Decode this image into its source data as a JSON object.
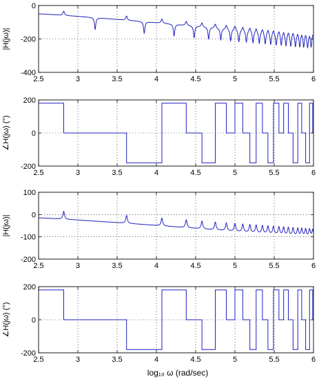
{
  "figure": {
    "xlabel": "log₁₀ ω (rad/sec)"
  },
  "chart_data": [
    {
      "type": "line",
      "ylabel": "|H(jω)|",
      "xlim": [
        2.5,
        6
      ],
      "ylim": [
        -400,
        0
      ],
      "xticks": [
        2.5,
        3,
        3.5,
        4,
        4.5,
        5,
        5.5,
        6
      ],
      "xtick_labels": [
        "2.5",
        "3",
        "3.5",
        "4",
        "4.5",
        "5",
        "5.5",
        "6"
      ],
      "yticks": [
        0,
        -200,
        -400
      ],
      "ytick_labels": [
        "0",
        "-200",
        "-400"
      ],
      "grid": true,
      "series": [
        {
          "kind": "magnitude",
          "baseline_start": -50,
          "baseline_end": -190,
          "peak_height": 25,
          "notches": true,
          "color": "#1f1fbf"
        }
      ]
    },
    {
      "type": "line",
      "ylabel": "∠H(jω) (°)",
      "xlim": [
        2.5,
        6
      ],
      "ylim": [
        -200,
        200
      ],
      "xticks": [
        2.5,
        3,
        3.5,
        4,
        4.5,
        5,
        5.5,
        6
      ],
      "xtick_labels": [
        "2.5",
        "3",
        "3.5",
        "4",
        "4.5",
        "5",
        "5.5",
        "6"
      ],
      "yticks": [
        200,
        0,
        -200
      ],
      "ytick_labels": [
        "200",
        "0",
        "-200"
      ],
      "grid": true,
      "series": [
        {
          "kind": "phase",
          "values": [
            180,
            0,
            -180,
            180,
            0,
            -180,
            180,
            0
          ],
          "color": "#1f1fbf"
        }
      ]
    },
    {
      "type": "line",
      "ylabel": "|H(jω)|",
      "xlim": [
        2.5,
        6
      ],
      "ylim": [
        -200,
        100
      ],
      "xticks": [
        2.5,
        3,
        3.5,
        4,
        4.5,
        5,
        5.5,
        6
      ],
      "xtick_labels": [
        "2.5",
        "3",
        "3.5",
        "4",
        "4.5",
        "5",
        "5.5",
        "6"
      ],
      "yticks": [
        100,
        0,
        -100,
        -200
      ],
      "ytick_labels": [
        "100",
        "0",
        "-100",
        "-200"
      ],
      "grid": true,
      "series": [
        {
          "kind": "magnitude",
          "baseline_start": -15,
          "baseline_end": -105,
          "peak_height": 35,
          "notches": false,
          "color": "#1f1fbf"
        }
      ]
    },
    {
      "type": "line",
      "ylabel": "∠H(jω) (°)",
      "xlim": [
        2.5,
        6
      ],
      "ylim": [
        -200,
        200
      ],
      "xticks": [
        2.5,
        3,
        3.5,
        4,
        4.5,
        5,
        5.5,
        6
      ],
      "xtick_labels": [
        "2.5",
        "3",
        "3.5",
        "4",
        "4.5",
        "5",
        "5.5",
        "6"
      ],
      "yticks": [
        200,
        0,
        -200
      ],
      "ytick_labels": [
        "200",
        "0",
        "-200"
      ],
      "grid": true,
      "series": [
        {
          "kind": "phase",
          "values": [
            180,
            0,
            -180,
            180,
            0,
            -180,
            180,
            0
          ],
          "color": "#1f1fbf"
        }
      ]
    }
  ],
  "resonances": [
    2.82,
    3.62,
    4.07,
    4.38,
    4.58,
    4.75,
    4.89,
    5.0,
    5.1,
    5.19,
    5.27,
    5.35,
    5.42,
    5.49,
    5.56,
    5.62,
    5.68,
    5.74,
    5.8,
    5.85,
    5.9,
    5.95,
    5.99
  ]
}
